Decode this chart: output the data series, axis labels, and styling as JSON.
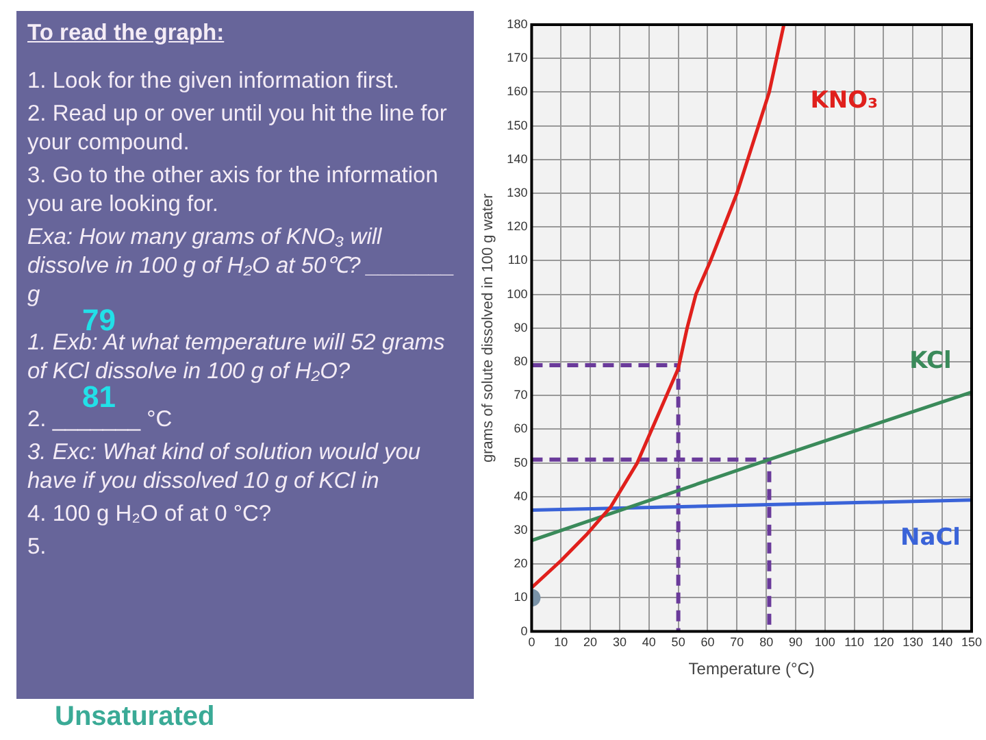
{
  "chart_data": {
    "type": "line",
    "xlabel": "Temperature (°C)",
    "ylabel": "grams of solute dissolved in 100 g water",
    "xlim": [
      0,
      150
    ],
    "ylim": [
      0,
      180
    ],
    "xticks": [
      0,
      10,
      20,
      30,
      40,
      50,
      60,
      70,
      80,
      90,
      100,
      110,
      120,
      130,
      140,
      150
    ],
    "yticks": [
      0,
      10,
      20,
      30,
      40,
      50,
      60,
      70,
      80,
      90,
      100,
      110,
      120,
      130,
      140,
      150,
      160,
      170,
      180
    ],
    "grid": true,
    "marker": "none",
    "series": [
      {
        "name": "KNO₃",
        "color": "#e0201c",
        "x": [
          0,
          10,
          19,
          27,
          36,
          43,
          50,
          53,
          56,
          61,
          70,
          81,
          86
        ],
        "values": [
          13,
          21,
          29,
          37,
          50,
          64,
          78,
          90,
          100,
          110,
          130,
          160,
          180
        ]
      },
      {
        "name": "KCl",
        "color": "#3a8a5a",
        "x": [
          0,
          81,
          150
        ],
        "values": [
          27,
          51,
          71
        ]
      },
      {
        "name": "NaCl",
        "color": "#3a63d8",
        "x": [
          0,
          150
        ],
        "values": [
          36,
          39
        ]
      },
      {
        "color": "#6a3a9a",
        "line_style": "dashed",
        "x": [
          0,
          50,
          50
        ],
        "values": [
          79,
          79,
          0
        ]
      },
      {
        "color": "#6a3a9a",
        "line_style": "dashed",
        "x": [
          0,
          81,
          81
        ],
        "values": [
          51,
          51,
          0
        ]
      },
      {
        "type": "scatter",
        "marker": "circle",
        "color": "#7a93a8",
        "x": [
          0
        ],
        "values": [
          10
        ]
      }
    ],
    "annotations": [
      "To read the graph:",
      "1.  Look for the given information first.",
      "2.  Read up or over until you hit the line for your compound.",
      "3.  Go to the other axis for the information you are looking for.",
      "Exa:  How many grams of KNO₃ will dissolve in 100 g of H₂O at 50℃?   _______ g",
      "79",
      "1.  Exb:  At what temperature will 52 grams of KCl dissolve in 100 g of H₂O?",
      "81",
      "2. _______ °C",
      "3.  Exc:  What kind of solution would you have if you dissolved 10 g of KCl in",
      "4.  100 g H₂O  of at 0 °C?",
      "5.",
      "Unsaturated"
    ]
  }
}
